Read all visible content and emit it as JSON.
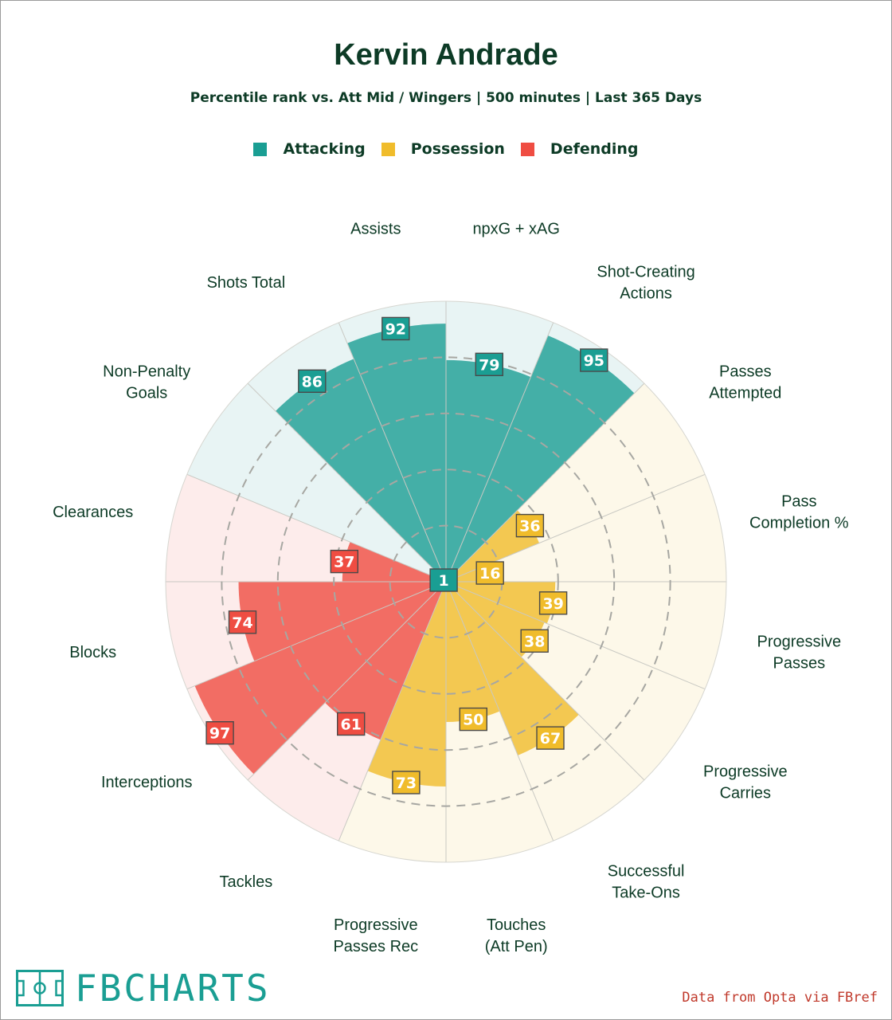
{
  "header": {
    "title": "Kervin Andrade",
    "subtitle": "Percentile rank vs. Att Mid / Wingers | 500 minutes | Last 365 Days"
  },
  "legend": [
    {
      "label": "Attacking",
      "color": "#1a9e93"
    },
    {
      "label": "Possession",
      "color": "#f0bc2b"
    },
    {
      "label": "Defending",
      "color": "#ef4d42"
    }
  ],
  "chart_data": {
    "type": "polar-bar",
    "title": "Kervin Andrade",
    "subtitle": "Percentile rank vs. Att Mid / Wingers | 500 minutes | Last 365 Days",
    "rlim": [
      0,
      100
    ],
    "rings": [
      20,
      40,
      60,
      80
    ],
    "categories": [
      {
        "label": "npxG + xAG",
        "group": "Attacking",
        "value": 79
      },
      {
        "label": "Shot-Creating Actions",
        "group": "Attacking",
        "value": 95
      },
      {
        "label": "Passes Attempted",
        "group": "Possession",
        "value": 36
      },
      {
        "label": "Pass Completion %",
        "group": "Possession",
        "value": 16
      },
      {
        "label": "Progressive Passes",
        "group": "Possession",
        "value": 39
      },
      {
        "label": "Progressive Carries",
        "group": "Possession",
        "value": 38
      },
      {
        "label": "Successful Take-Ons",
        "group": "Possession",
        "value": 67
      },
      {
        "label": "Touches (Att Pen)",
        "group": "Possession",
        "value": 50
      },
      {
        "label": "Progressive Passes Rec",
        "group": "Possession",
        "value": 73
      },
      {
        "label": "Tackles",
        "group": "Defending",
        "value": 61
      },
      {
        "label": "Interceptions",
        "group": "Defending",
        "value": 97
      },
      {
        "label": "Blocks",
        "group": "Defending",
        "value": 74
      },
      {
        "label": "Clearances",
        "group": "Defending",
        "value": 37
      },
      {
        "label": "Non-Penalty Goals",
        "group": "Attacking",
        "value": 1
      },
      {
        "label": "Shots Total",
        "group": "Attacking",
        "value": 86
      },
      {
        "label": "Assists",
        "group": "Attacking",
        "value": 92
      }
    ],
    "colors": {
      "Attacking": {
        "bar": "#1a9e93",
        "bg": "#e8f4f4",
        "badge": "#1a9e93"
      },
      "Possession": {
        "bar": "#f0bc2b",
        "bg": "#fdf8e9",
        "badge": "#f0bc2b"
      },
      "Defending": {
        "bar": "#ef4d42",
        "bg": "#fdeceb",
        "badge": "#ef4d42"
      }
    }
  },
  "footer": {
    "logo_text": "FBCHARTS",
    "credit": "Data from Opta via FBref"
  }
}
